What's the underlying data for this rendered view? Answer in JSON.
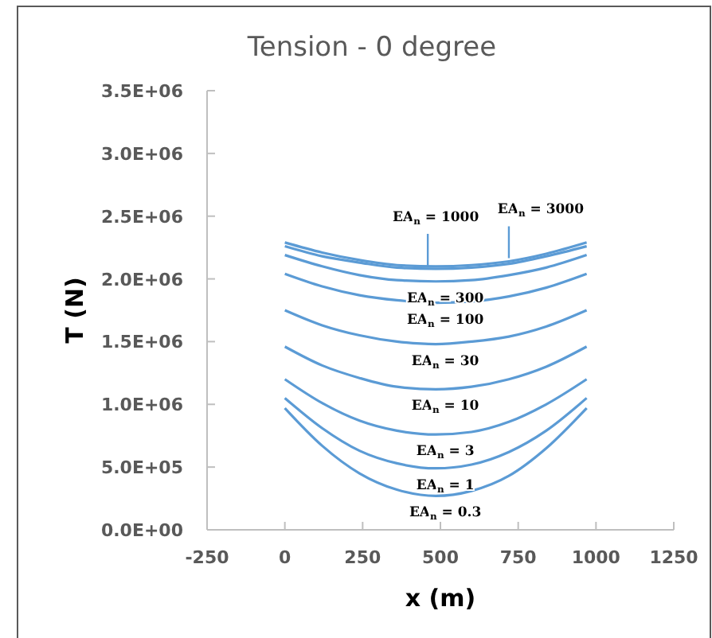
{
  "chart_data": {
    "type": "line",
    "title": "Tension - 0 degree",
    "xlabel": "x (m)",
    "ylabel": "T (N)",
    "x": [
      0,
      120,
      240,
      360,
      485,
      600,
      720,
      840,
      970
    ],
    "series": [
      {
        "color": "#5b9bd5",
        "values": [
          2290000,
          2210000,
          2150000,
          2110000,
          2100000,
          2110000,
          2140000,
          2200000,
          2290000
        ]
      },
      {
        "color": "#5b9bd5",
        "values": [
          2260000,
          2180000,
          2130000,
          2090000,
          2080000,
          2090000,
          2120000,
          2180000,
          2260000
        ]
      },
      {
        "color": "#5b9bd5",
        "values": [
          2190000,
          2100000,
          2030000,
          1990000,
          1980000,
          1990000,
          2030000,
          2090000,
          2190000
        ]
      },
      {
        "color": "#5b9bd5",
        "values": [
          2040000,
          1940000,
          1870000,
          1830000,
          1810000,
          1820000,
          1860000,
          1930000,
          2040000
        ]
      },
      {
        "color": "#5b9bd5",
        "values": [
          1750000,
          1630000,
          1550000,
          1500000,
          1480000,
          1500000,
          1540000,
          1620000,
          1750000
        ]
      },
      {
        "color": "#5b9bd5",
        "values": [
          1460000,
          1310000,
          1210000,
          1140000,
          1120000,
          1140000,
          1200000,
          1300000,
          1460000
        ]
      },
      {
        "color": "#5b9bd5",
        "values": [
          1200000,
          1010000,
          870000,
          790000,
          760000,
          780000,
          860000,
          1000000,
          1200000
        ]
      },
      {
        "color": "#5b9bd5",
        "values": [
          1050000,
          810000,
          630000,
          530000,
          490000,
          520000,
          620000,
          790000,
          1050000
        ]
      },
      {
        "color": "#5b9bd5",
        "values": [
          970000,
          670000,
          450000,
          320000,
          270000,
          310000,
          430000,
          650000,
          970000
        ]
      }
    ],
    "annotations": [
      "EA$_{n}$ = 3000",
      "EA$_{n}$ = 1000",
      "EA$_{n}$ = 300",
      "EA$_{n}$ = 100",
      "EA$_{n}$ = 30",
      "EA$_{n}$ = 10",
      "EA$_{n}$ = 3",
      "EA$_{n}$ = 1",
      "EA$_{n}$ = 0.3"
    ],
    "xlim": [
      -250,
      1250
    ],
    "xticks": [
      -250,
      0,
      250,
      500,
      750,
      1000,
      1250
    ],
    "ylim": [
      0,
      3500000
    ],
    "yticks": [
      {
        "value": 0,
        "label": "0.0E+00"
      },
      {
        "value": 500000,
        "label": "5.0E+05"
      },
      {
        "value": 1000000,
        "label": "1.0E+06"
      },
      {
        "value": 1500000,
        "label": "1.5E+06"
      },
      {
        "value": 2000000,
        "label": "2.0E+06"
      },
      {
        "value": 2500000,
        "label": "2.5E+06"
      },
      {
        "value": 3000000,
        "label": "3.0E+06"
      },
      {
        "value": 3500000,
        "label": "3.5E+06"
      }
    ],
    "grid": false,
    "marker": "none",
    "line_style": "solid"
  }
}
